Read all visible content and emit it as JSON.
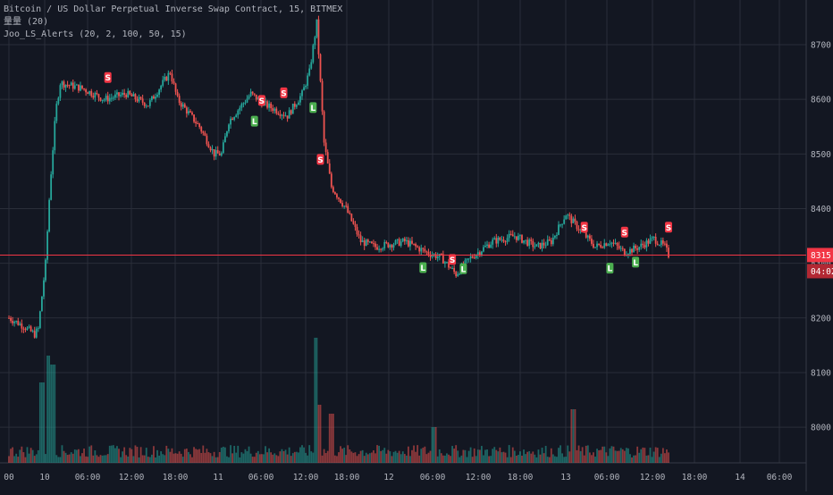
{
  "header": {
    "symbol_line": "Bitcoin / US Dollar Perpetual Inverse Swap Contract, 15, BITMEX",
    "volume_line": "量量 (20)",
    "indicator_line": "Joo_LS_Alerts (20, 2, 100, 50, 15)"
  },
  "colors": {
    "background": "#131722",
    "grid": "#2a2e39",
    "up": "#26a69a",
    "down": "#ef5350",
    "text": "#b2b5be",
    "price_line": "#f23645",
    "signal_long": "#4caf50",
    "signal_short": "#f23645"
  },
  "chart_data": {
    "type": "candlestick",
    "title": "Bitcoin / US Dollar Perpetual Inverse Swap Contract, 15, BITMEX",
    "interval": "15",
    "ylim": [
      7920,
      8780
    ],
    "y_ticks": [
      "8700.0",
      "8600.0",
      "8500.0",
      "8400.0",
      "8300.0",
      "8200.0",
      "8100.0",
      "8000.0"
    ],
    "x_ticks": [
      "00",
      "10",
      "06:00",
      "12:00",
      "18:00",
      "11",
      "06:00",
      "12:00",
      "18:00",
      "12",
      "06:00",
      "12:00",
      "18:00",
      "13",
      "06:00",
      "12:00",
      "18:00",
      "14",
      "06:00"
    ],
    "x_range_hours": [
      0,
      104
    ],
    "grid": true,
    "last_price": "8315.0",
    "countdown": "04:02",
    "price_path": [
      [
        0,
        8200
      ],
      [
        2,
        8185
      ],
      [
        3.5,
        8170
      ],
      [
        4,
        8180
      ],
      [
        5,
        8300
      ],
      [
        5.6,
        8440
      ],
      [
        6.4,
        8580
      ],
      [
        7,
        8630
      ],
      [
        10,
        8620
      ],
      [
        13,
        8600
      ],
      [
        16,
        8610
      ],
      [
        19,
        8590
      ],
      [
        22,
        8650
      ],
      [
        23,
        8600
      ],
      [
        26,
        8550
      ],
      [
        28,
        8500
      ],
      [
        29,
        8500
      ],
      [
        30,
        8560
      ],
      [
        33,
        8610
      ],
      [
        35,
        8590
      ],
      [
        38,
        8570
      ],
      [
        40,
        8610
      ],
      [
        41,
        8650
      ],
      [
        42,
        8740
      ],
      [
        43,
        8520
      ],
      [
        44,
        8440
      ],
      [
        46,
        8400
      ],
      [
        48,
        8340
      ],
      [
        50,
        8330
      ],
      [
        54,
        8340
      ],
      [
        57,
        8320
      ],
      [
        59,
        8310
      ],
      [
        61,
        8280
      ],
      [
        63,
        8310
      ],
      [
        66,
        8340
      ],
      [
        69,
        8350
      ],
      [
        72,
        8330
      ],
      [
        74,
        8340
      ],
      [
        76,
        8390
      ],
      [
        78,
        8360
      ],
      [
        80,
        8330
      ],
      [
        82,
        8340
      ],
      [
        84,
        8320
      ],
      [
        86,
        8330
      ],
      [
        88,
        8345
      ],
      [
        89.5,
        8330
      ],
      [
        90,
        8315
      ]
    ],
    "volume_spikes": [
      [
        4.5,
        90
      ],
      [
        5.5,
        120
      ],
      [
        6,
        110
      ],
      [
        42,
        140
      ],
      [
        42.4,
        65
      ],
      [
        44,
        55
      ],
      [
        77,
        60
      ],
      [
        58,
        40
      ]
    ],
    "signals": [
      {
        "label": "S",
        "hour": 13.5,
        "price": 8640
      },
      {
        "label": "S",
        "hour": 34.5,
        "price": 8598
      },
      {
        "label": "L",
        "hour": 33.5,
        "price": 8560
      },
      {
        "label": "S",
        "hour": 37.5,
        "price": 8612
      },
      {
        "label": "L",
        "hour": 41.5,
        "price": 8585
      },
      {
        "label": "S",
        "hour": 42.5,
        "price": 8490
      },
      {
        "label": "L",
        "hour": 56.5,
        "price": 8292
      },
      {
        "label": "S",
        "hour": 60.5,
        "price": 8307
      },
      {
        "label": "L",
        "hour": 62,
        "price": 8290
      },
      {
        "label": "S",
        "hour": 78.5,
        "price": 8366
      },
      {
        "label": "L",
        "hour": 82,
        "price": 8291
      },
      {
        "label": "S",
        "hour": 84,
        "price": 8357
      },
      {
        "label": "L",
        "hour": 85.5,
        "price": 8302
      },
      {
        "label": "S",
        "hour": 90,
        "price": 8366
      }
    ]
  }
}
